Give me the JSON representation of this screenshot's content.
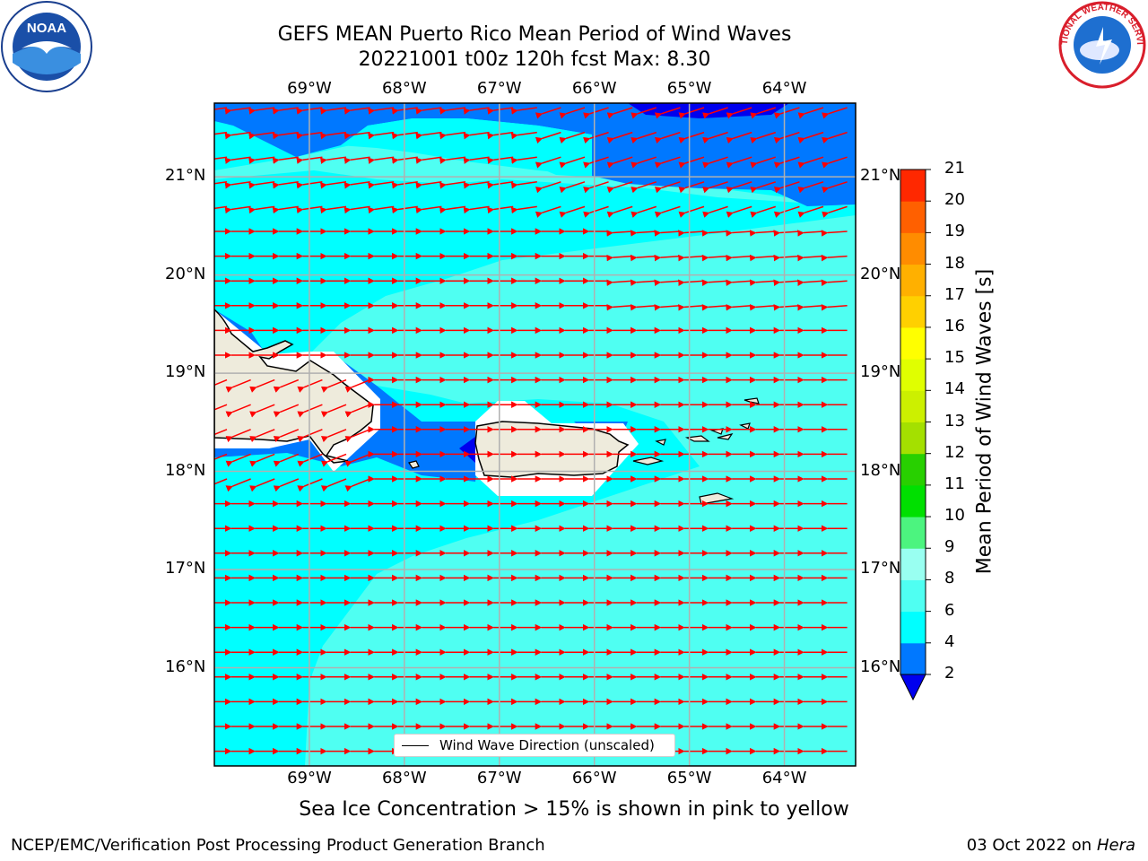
{
  "header": {
    "title_line1": "GEFS MEAN Puerto Rico Mean Period of Wind Waves",
    "title_line2": "20221001 t00z 120h fcst   Max: 8.30"
  },
  "logos": {
    "left": {
      "icon": "noaa-logo",
      "text": "NOAA"
    },
    "right": {
      "icon": "nws-logo",
      "text": "NATIONAL WEATHER SERVICE"
    }
  },
  "map": {
    "lon_ticks": [
      "69°W",
      "68°W",
      "67°W",
      "66°W",
      "65°W",
      "64°W"
    ],
    "lat_ticks": [
      "21°N",
      "20°N",
      "19°N",
      "18°N",
      "17°N",
      "16°N"
    ],
    "lon_range": [
      -70.0,
      -63.25
    ],
    "lat_range": [
      15.0,
      21.75
    ],
    "land_color": "#eeebdc",
    "arrow_color": "#ff0000",
    "grid": true
  },
  "legend": {
    "label": "Wind Wave Direction (unscaled)"
  },
  "colorbar": {
    "title": "Mean Period of Wind Waves [s]",
    "ticks": [
      "21",
      "20",
      "19",
      "18",
      "17",
      "16",
      "15",
      "14",
      "13",
      "12",
      "11",
      "10",
      "9",
      "8",
      "6",
      "4",
      "2"
    ],
    "levels": [
      2,
      4,
      6,
      8,
      9,
      10,
      11,
      12,
      13,
      14,
      15,
      16,
      17,
      18,
      19,
      20,
      21
    ],
    "colors": [
      "#0078ff",
      "#00ffff",
      "#4ffff2",
      "#99fff1",
      "#4cf47f",
      "#00e000",
      "#28d000",
      "#a4e000",
      "#ccf000",
      "#e0ff00",
      "#ffff00",
      "#ffd000",
      "#ffb000",
      "#ff8c00",
      "#ff6000",
      "#ff2800",
      "#ff0000"
    ],
    "extend_color": "#0000ee"
  },
  "caption": "Sea Ice Concentration > 15% is shown in pink to yellow",
  "footer": {
    "left": "NCEP/EMC/Verification Post Processing Product Generation Branch",
    "date": "03 Oct 2022 on",
    "machine": "Hera"
  }
}
